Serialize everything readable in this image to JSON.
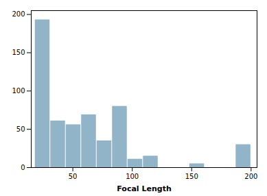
{
  "chart_data": {
    "type": "histogram",
    "bins": [
      18,
      31,
      44,
      57,
      70,
      83,
      96,
      109,
      122,
      135,
      148,
      161,
      174,
      187,
      200
    ],
    "values": [
      193,
      61,
      56,
      69,
      35,
      80,
      11,
      15,
      0,
      0,
      5,
      0,
      0,
      30
    ],
    "color": "#92b4c8",
    "xlabel": "Focal Length",
    "xlim": [
      15,
      205
    ],
    "ylim": [
      0,
      205
    ],
    "xticks": [
      50,
      100,
      150,
      200
    ],
    "yticks": [
      0,
      50,
      100,
      150,
      200
    ],
    "grid": false
  }
}
